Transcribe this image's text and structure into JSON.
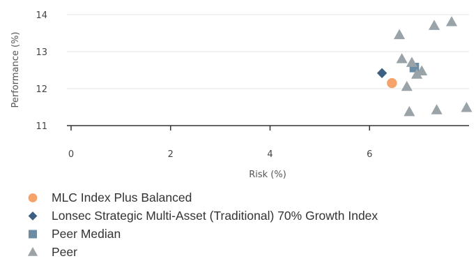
{
  "chart_data": {
    "type": "scatter",
    "xlabel": "Risk (%)",
    "ylabel": "Performance (%)",
    "xlim": [
      0,
      8
    ],
    "ylim": [
      11,
      14
    ],
    "xticks": [
      "0",
      "2",
      "4",
      "6"
    ],
    "yticks": [
      "11",
      "12",
      "13",
      "14"
    ],
    "grid": true,
    "legend_position": "bottom",
    "series": [
      {
        "name": "MLC Index Plus Balanced",
        "marker": "circle",
        "color": "#f5a36b",
        "points": [
          {
            "x": 6.45,
            "y": 12.15
          }
        ]
      },
      {
        "name": "Lonsec Strategic Multi-Asset (Traditional) 70% Growth Index",
        "marker": "diamond",
        "color": "#3d5f80",
        "points": [
          {
            "x": 6.25,
            "y": 12.42
          }
        ]
      },
      {
        "name": "Peer Median",
        "marker": "square",
        "color": "#6b8ca3",
        "points": [
          {
            "x": 6.9,
            "y": 12.57
          }
        ]
      },
      {
        "name": "Peer",
        "marker": "triangle",
        "color": "#9aa3a8",
        "points": [
          {
            "x": 6.6,
            "y": 13.45
          },
          {
            "x": 7.3,
            "y": 13.7
          },
          {
            "x": 7.65,
            "y": 13.8
          },
          {
            "x": 6.65,
            "y": 12.8
          },
          {
            "x": 6.85,
            "y": 12.7
          },
          {
            "x": 6.95,
            "y": 12.38
          },
          {
            "x": 7.05,
            "y": 12.47
          },
          {
            "x": 6.75,
            "y": 12.05
          },
          {
            "x": 6.8,
            "y": 11.37
          },
          {
            "x": 7.35,
            "y": 11.42
          },
          {
            "x": 7.95,
            "y": 11.48
          }
        ]
      }
    ]
  }
}
